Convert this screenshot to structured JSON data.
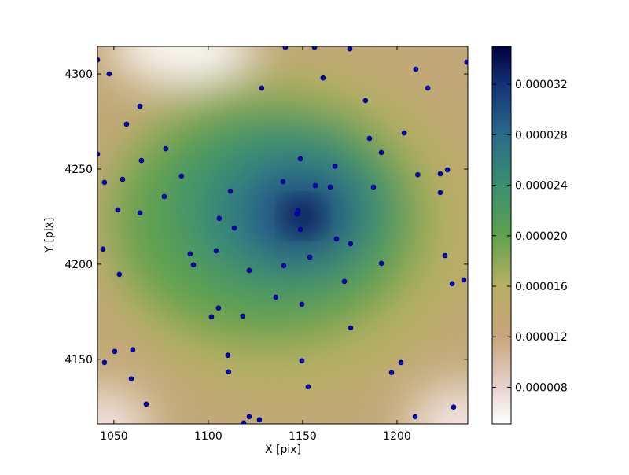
{
  "chart_data": {
    "type": "scatter",
    "xlabel": "X [pix]",
    "ylabel": "Y [pix]",
    "xlim": [
      1041.3,
      1237.5
    ],
    "ylim": [
      4116,
      4314.5
    ],
    "xticks": [
      1050,
      1100,
      1150,
      1200
    ],
    "yticks": [
      4150,
      4200,
      4250,
      4300
    ],
    "point_color": "#0000cc",
    "x": [
      1041.3,
      1047.5,
      1063.8,
      1056.7,
      1064.6,
      1041.3,
      1045,
      1054.6,
      1052.1,
      1077.5,
      1085.8,
      1076.7,
      1063.8,
      1044.2,
      1090.4,
      1092.1,
      1052.9,
      1111.7,
      1105.8,
      1113.8,
      1104.2,
      1121.7,
      1128.3,
      1140.8,
      1156.3,
      1175,
      1160.8,
      1183.3,
      1185.4,
      1203.8,
      1191.7,
      1210,
      1216.3,
      1222.9,
      1237,
      1148.8,
      1156.7,
      1164.6,
      1167.1,
      1139.6,
      1187.5,
      1148.8,
      1153.8,
      1167.9,
      1175.4,
      1140,
      1191.7,
      1222.9,
      1225.4,
      1229.2,
      1235.4,
      1172.1,
      1135.8,
      1149.6,
      1105.4,
      1101.7,
      1118.3,
      1110.4,
      1110.8,
      1060,
      1050.4,
      1045,
      1059.2,
      1067.1,
      1149.6,
      1152.9,
      1175.4,
      1197.1,
      1202.1,
      1209.6,
      1230,
      1127.1,
      1121.7,
      1118.8,
      1147.1,
      1147.5,
      1226.7,
      1211
    ],
    "y": [
      4307.4,
      4300,
      4283,
      4273.6,
      4254.5,
      4257.9,
      4243,
      4244.6,
      4228.5,
      4260.7,
      4246.3,
      4235.5,
      4226.9,
      4207.9,
      4205.4,
      4199.6,
      4194.6,
      4238.4,
      4224,
      4219,
      4207,
      4196.7,
      4292.6,
      4314,
      4314,
      4313.2,
      4297.9,
      4286,
      4266.1,
      4269,
      4258.7,
      4302.5,
      4292.6,
      4247.5,
      4306.2,
      4255.4,
      4241.3,
      4240.5,
      4251.5,
      4243.4,
      4240.5,
      4218.2,
      4203.7,
      4213.2,
      4210.7,
      4199.2,
      4200.4,
      4237.6,
      4204.5,
      4189.7,
      4191.7,
      4190.9,
      4182.6,
      4178.9,
      4176.9,
      4172.3,
      4172.7,
      4152.1,
      4143.4,
      4155,
      4154.1,
      4148.3,
      4139.7,
      4126.4,
      4149.2,
      4135.5,
      4166.5,
      4143,
      4148.3,
      4119.8,
      4124.8,
      4118.2,
      4119.8,
      4116.5,
      4226.4,
      4228.1,
      4249.6,
      4247
    ],
    "clim": [
      5.1e-06,
      3.5e-05
    ],
    "cticks": [
      {
        "value": 8e-06,
        "label": "0.000008"
      },
      {
        "value": 1.2e-05,
        "label": "0.000012"
      },
      {
        "value": 1.6e-05,
        "label": "0.000016"
      },
      {
        "value": 2e-05,
        "label": "0.000020"
      },
      {
        "value": 2.4e-05,
        "label": "0.000024"
      },
      {
        "value": 2.8e-05,
        "label": "0.000028"
      },
      {
        "value": 3.2e-05,
        "label": "0.000032"
      }
    ]
  }
}
